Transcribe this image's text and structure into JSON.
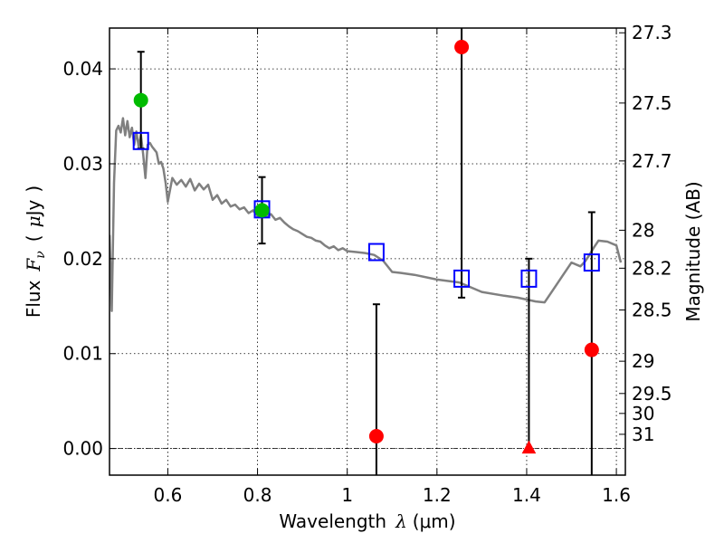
{
  "chart_data": {
    "type": "scatter",
    "xlabel_text": "Wavelength",
    "xlabel_symbol": "λ",
    "xlabel_unit": "(μm)",
    "ylabel_text": "Flux",
    "ylabel_symbol": "F",
    "ylabel_symbol_sub": "ν",
    "ylabel_unit_open": "(",
    "ylabel_unit_symbol": "μ",
    "ylabel_unit_rest": "Jy",
    "ylabel_unit_close": ")",
    "y2label": "Magnitude (AB)",
    "xlim": [
      0.47,
      1.62
    ],
    "ylim": [
      -0.0028,
      0.0443
    ],
    "grid": true,
    "xticks": [
      0.6,
      0.8,
      1.0,
      1.2,
      1.4,
      1.6
    ],
    "xtick_labels": [
      "0.6",
      "0.8",
      "1",
      "1.2",
      "1.4",
      "1.6"
    ],
    "yticks": [
      0.0,
      0.01,
      0.02,
      0.03,
      0.04
    ],
    "ytick_labels": [
      "0.00",
      "0.01",
      "0.02",
      "0.03",
      "0.04"
    ],
    "mag_ticks": [
      {
        "label": "27.3",
        "flux": 0.0438
      },
      {
        "label": "27.5",
        "flux": 0.0364
      },
      {
        "label": "27.7",
        "flux": 0.0303
      },
      {
        "label": "28",
        "flux": 0.023
      },
      {
        "label": "28.2",
        "flux": 0.019
      },
      {
        "label": "28.5",
        "flux": 0.0146
      },
      {
        "label": "29",
        "flux": 0.0092
      },
      {
        "label": "29.5",
        "flux": 0.0058
      },
      {
        "label": "30",
        "flux": 0.0037
      },
      {
        "label": "31",
        "flux": 0.0015
      }
    ],
    "reference_line_flux": 0.0,
    "series": [
      {
        "name": "template-sed",
        "kind": "line",
        "color": "#808080",
        "x": [
          0.47,
          0.475,
          0.48,
          0.485,
          0.49,
          0.495,
          0.5,
          0.505,
          0.51,
          0.515,
          0.52,
          0.525,
          0.53,
          0.535,
          0.54,
          0.545,
          0.55,
          0.555,
          0.56,
          0.565,
          0.57,
          0.575,
          0.58,
          0.585,
          0.59,
          0.595,
          0.6,
          0.61,
          0.62,
          0.63,
          0.64,
          0.65,
          0.66,
          0.67,
          0.68,
          0.69,
          0.7,
          0.71,
          0.72,
          0.73,
          0.74,
          0.75,
          0.76,
          0.77,
          0.78,
          0.79,
          0.8,
          0.81,
          0.82,
          0.83,
          0.84,
          0.85,
          0.86,
          0.87,
          0.88,
          0.89,
          0.9,
          0.91,
          0.92,
          0.93,
          0.94,
          0.95,
          0.96,
          0.97,
          0.98,
          0.99,
          1.0,
          1.02,
          1.04,
          1.06,
          1.08,
          1.1,
          1.12,
          1.15,
          1.2,
          1.25,
          1.3,
          1.35,
          1.38,
          1.4,
          1.42,
          1.44,
          1.46,
          1.48,
          1.5,
          1.52,
          1.53,
          1.54,
          1.55,
          1.56,
          1.58,
          1.6,
          1.61
        ],
        "y": [
          0.0225,
          0.0145,
          0.028,
          0.0335,
          0.034,
          0.0333,
          0.0348,
          0.033,
          0.0345,
          0.0328,
          0.0338,
          0.032,
          0.0334,
          0.0318,
          0.033,
          0.031,
          0.0285,
          0.032,
          0.0322,
          0.0318,
          0.0315,
          0.0312,
          0.03,
          0.0302,
          0.0295,
          0.028,
          0.026,
          0.0285,
          0.0278,
          0.0283,
          0.0276,
          0.0284,
          0.0272,
          0.0279,
          0.0273,
          0.0278,
          0.0262,
          0.0267,
          0.0258,
          0.0262,
          0.0255,
          0.0257,
          0.0252,
          0.0254,
          0.0248,
          0.0251,
          0.0245,
          0.0249,
          0.0245,
          0.0247,
          0.0241,
          0.0243,
          0.0238,
          0.0234,
          0.0231,
          0.0229,
          0.0226,
          0.0223,
          0.0222,
          0.0219,
          0.0218,
          0.0214,
          0.0211,
          0.0213,
          0.0209,
          0.0211,
          0.0208,
          0.0207,
          0.0206,
          0.0204,
          0.0198,
          0.0186,
          0.0185,
          0.0183,
          0.0178,
          0.0175,
          0.0165,
          0.0161,
          0.0159,
          0.0157,
          0.0155,
          0.0154,
          0.0168,
          0.0182,
          0.0196,
          0.0192,
          0.0197,
          0.0204,
          0.0212,
          0.0219,
          0.0218,
          0.0214,
          0.0196
        ]
      },
      {
        "name": "model-photometry",
        "kind": "open-square",
        "color": "#0000ff",
        "x": [
          0.54,
          0.81,
          1.065,
          1.255,
          1.405,
          1.545
        ],
        "y": [
          0.0324,
          0.0252,
          0.0207,
          0.0179,
          0.0179,
          0.0196
        ]
      },
      {
        "name": "detections-green",
        "kind": "circle",
        "color": "#00bb00",
        "x": [
          0.54,
          0.81
        ],
        "y": [
          0.0367,
          0.0251
        ],
        "err": [
          0.0051,
          0.0035
        ]
      },
      {
        "name": "low-significance-red",
        "kind": "circle",
        "color": "#ff0000",
        "x": [
          1.065,
          1.255,
          1.545
        ],
        "y": [
          0.0013,
          0.0423,
          0.0104
        ],
        "err": [
          0.0139,
          0.0264,
          0.0145
        ]
      },
      {
        "name": "upper-limit-red",
        "kind": "triangle",
        "color": "#ff0000",
        "x": [
          1.405
        ],
        "y": [
          0.0
        ],
        "err_up": [
          0.02
        ]
      }
    ]
  }
}
